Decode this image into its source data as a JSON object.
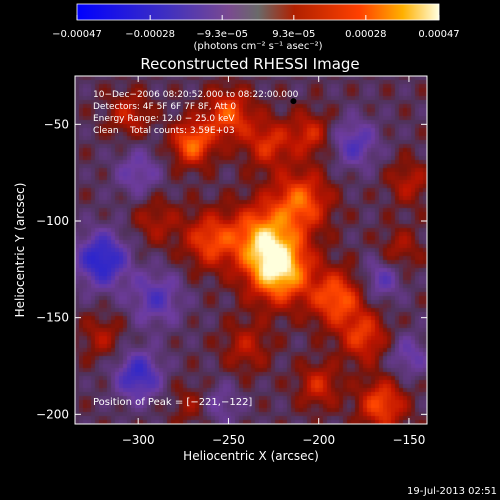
{
  "chart_data": {
    "type": "heatmap",
    "title": "Reconstructed RHESSI Image",
    "xlabel": "Heliocentric X (arcsec)",
    "ylabel": "Heliocentric Y (arcsec)",
    "xlim": [
      -335,
      -140
    ],
    "ylim": [
      -205,
      -25
    ],
    "x_ticks": [
      -300,
      -250,
      -200,
      -150
    ],
    "x_tick_labels": [
      "−300",
      "−250",
      "−200",
      "−150"
    ],
    "y_ticks": [
      -50,
      -100,
      -150,
      -200
    ],
    "y_tick_labels": [
      "−50",
      "−100",
      "−150",
      "−200"
    ],
    "colorbar": {
      "range": [
        -0.00047,
        0.00047
      ],
      "tick_labels": [
        "−0.00047",
        "−0.00028",
        "−9.3e−05",
        "9.3e−05",
        "0.00028",
        "0.00047"
      ],
      "unit_label": "(photons cm⁻² s⁻¹ asec⁻²)"
    },
    "annotations": [
      "10−Dec−2006 08:20:52.000 to 08:22:00.000",
      "Detectors: 4F 5F 6F 7F 8F, Att 0",
      "Energy Range: 12.0 − 25.0 keV",
      "Clean    Total counts: 3.59E+03"
    ],
    "peak_label": "Position of Peak = [−221,−122]",
    "peak": {
      "x": -221,
      "y": -122
    },
    "marker": {
      "x": -214,
      "y": -38
    },
    "blobs": [
      {
        "x": -222,
        "y": -125,
        "a": 0.00044,
        "s": 12
      },
      {
        "x": -232,
        "y": -108,
        "a": 0.0003,
        "s": 12
      },
      {
        "x": -210,
        "y": -90,
        "a": 0.00028,
        "s": 11
      },
      {
        "x": -260,
        "y": -110,
        "a": 0.00024,
        "s": 10
      },
      {
        "x": -270,
        "y": -60,
        "a": 0.0003,
        "s": 8
      },
      {
        "x": -250,
        "y": -45,
        "a": 0.00026,
        "s": 9
      },
      {
        "x": -228,
        "y": -60,
        "a": 0.0002,
        "s": 9
      },
      {
        "x": -205,
        "y": -55,
        "a": 0.00018,
        "s": 8
      },
      {
        "x": -190,
        "y": -140,
        "a": 0.00028,
        "s": 10
      },
      {
        "x": -175,
        "y": -160,
        "a": 0.00022,
        "s": 9
      },
      {
        "x": -165,
        "y": -195,
        "a": 0.00026,
        "s": 9
      },
      {
        "x": -200,
        "y": -185,
        "a": 0.00018,
        "s": 8
      },
      {
        "x": -240,
        "y": -165,
        "a": 0.00014,
        "s": 9
      },
      {
        "x": -305,
        "y": -45,
        "a": 0.00016,
        "s": 8
      },
      {
        "x": -290,
        "y": -100,
        "a": 0.00012,
        "s": 9
      },
      {
        "x": -320,
        "y": -160,
        "a": 0.00012,
        "s": 8
      },
      {
        "x": -270,
        "y": -195,
        "a": 0.0001,
        "s": 8
      },
      {
        "x": -150,
        "y": -80,
        "a": 0.00014,
        "s": 8
      },
      {
        "x": -155,
        "y": -115,
        "a": 0.00012,
        "s": 8
      },
      {
        "x": -320,
        "y": -120,
        "a": -0.0003,
        "s": 10
      },
      {
        "x": -300,
        "y": -180,
        "a": -0.00025,
        "s": 9
      },
      {
        "x": -290,
        "y": -140,
        "a": -0.00018,
        "s": 10
      },
      {
        "x": -180,
        "y": -60,
        "a": -0.00018,
        "s": 9
      },
      {
        "x": -165,
        "y": -130,
        "a": -0.00016,
        "s": 8
      },
      {
        "x": -150,
        "y": -170,
        "a": -0.00014,
        "s": 8
      },
      {
        "x": -300,
        "y": -75,
        "a": -0.00014,
        "s": 9
      },
      {
        "x": -255,
        "y": -195,
        "a": -0.00012,
        "s": 8
      }
    ],
    "grid": false,
    "colors": {
      "background": "#000000",
      "text": "#ffffff"
    }
  },
  "footer": {
    "date": "19-Jul-2013 02:51"
  }
}
